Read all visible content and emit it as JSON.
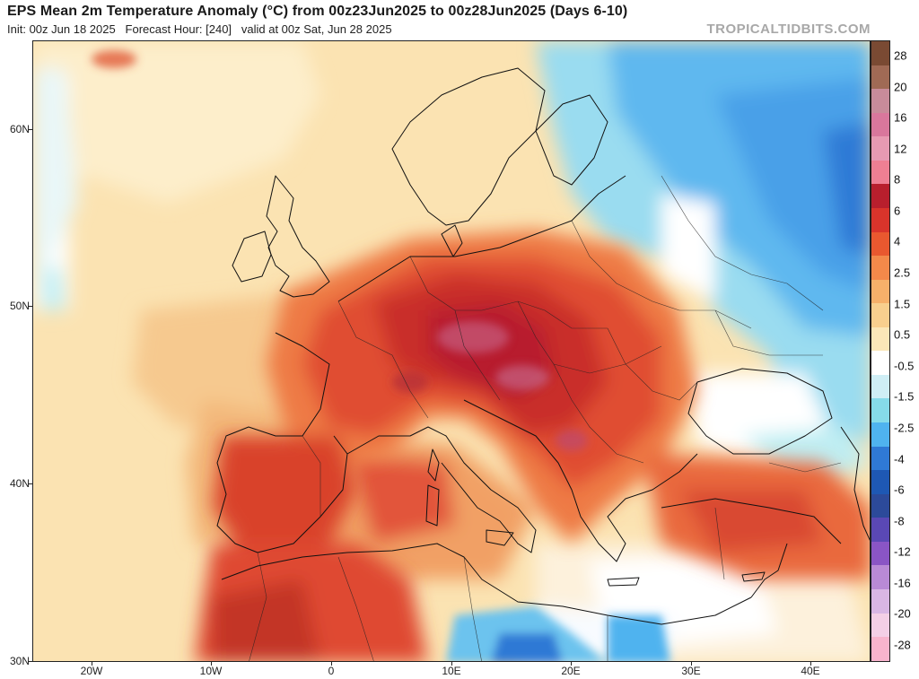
{
  "header": {
    "title": "EPS Mean 2m Temperature Anomaly (°C) from 00z23Jun2025 to 00z28Jun2025 (Days 6-10)",
    "subtitle": "Init: 00z Jun 18 2025   Forecast Hour: [240]   valid at 00z Sat, Jun 28 2025",
    "brand": "TROPICALTIDBITS.COM"
  },
  "axes": {
    "latitude_labels": [
      "60N",
      "50N",
      "40N",
      "30N"
    ],
    "longitude_labels": [
      "20W",
      "10W",
      "0",
      "10E",
      "20E",
      "30E",
      "40E"
    ]
  },
  "colorbar": {
    "unit": "°C",
    "labels": [
      "28",
      "20",
      "16",
      "12",
      "8",
      "6",
      "4",
      "2.5",
      "1.5",
      "0.5",
      "-0.5",
      "-1.5",
      "-2.5",
      "-4",
      "-6",
      "-8",
      "-12",
      "-16",
      "-20",
      "-28"
    ],
    "colors_top_to_bottom": [
      "#7a4a33",
      "#a06a55",
      "#c88b9a",
      "#d9779c",
      "#e79ab2",
      "#ee7f93",
      "#b81f2d",
      "#d9342b",
      "#e9582f",
      "#f3894a",
      "#f6b06a",
      "#f8cf8e",
      "#fbe7b8",
      "#ffffff",
      "#cfeef5",
      "#86dbe9",
      "#4fb3ef",
      "#2f79d5",
      "#1e58b4",
      "#2c4a9a",
      "#5a48b5",
      "#8a55c5",
      "#b98ad6",
      "#d9b6e4",
      "#f4cfe6",
      "#f8b4cd"
    ]
  },
  "map": {
    "region": "Europe, North Africa and Middle East",
    "lat_range": [
      30,
      65
    ],
    "lon_range": [
      -25,
      45
    ],
    "warm_anomaly_core": "Central Europe / Alps / Balkans",
    "cool_anomaly_region": "Scandinavia, Western Russia, Black Sea"
  }
}
